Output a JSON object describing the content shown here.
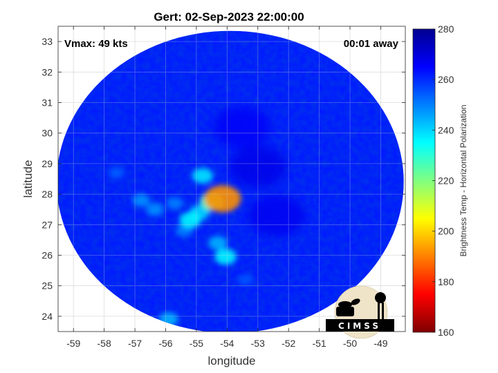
{
  "chart_data": {
    "type": "heatmap",
    "title": "Gert: 02-Sep-2023 22:00:00",
    "xlabel": "longitude",
    "ylabel": "latitude",
    "xlim": [
      -59.5,
      -48.2
    ],
    "ylim": [
      23.5,
      33.5
    ],
    "x_ticks": [
      -59,
      -58,
      -57,
      -56,
      -55,
      -54,
      -53,
      -52,
      -51,
      -50,
      -49
    ],
    "y_ticks": [
      24,
      25,
      26,
      27,
      28,
      29,
      30,
      31,
      32,
      33
    ],
    "grid": true,
    "annotations": {
      "vmax": "Vmax: 49 kts",
      "time_away": "00:01 away"
    },
    "colorbar": {
      "label": "Brightness Temp - Horizontal Polarization",
      "min": 160,
      "max": 280,
      "ticks": [
        160,
        180,
        200,
        220,
        240,
        260,
        280
      ],
      "colors": [
        "#7f0000",
        "#ff0000",
        "#ff8000",
        "#ffff00",
        "#80ff80",
        "#00ffff",
        "#0080ff",
        "#0000ff",
        "#00008f"
      ]
    },
    "swath": {
      "center": [
        -53.9,
        28.4
      ],
      "lon_radius": 5.65,
      "lat_radius": 4.95,
      "background_value": 262
    },
    "features": [
      {
        "lon": -54.15,
        "lat": 27.85,
        "value": 192
      },
      {
        "lon": -54.5,
        "lat": 27.75,
        "value": 228
      },
      {
        "lon": -54.9,
        "lat": 27.4,
        "value": 240
      },
      {
        "lon": -55.2,
        "lat": 27.15,
        "value": 236
      },
      {
        "lon": -54.8,
        "lat": 28.6,
        "value": 238
      },
      {
        "lon": -54.05,
        "lat": 25.95,
        "value": 236
      },
      {
        "lon": -54.3,
        "lat": 26.4,
        "value": 244
      },
      {
        "lon": -56.35,
        "lat": 27.5,
        "value": 248
      },
      {
        "lon": -55.4,
        "lat": 26.8,
        "value": 250
      },
      {
        "lon": -55.7,
        "lat": 27.7,
        "value": 250
      },
      {
        "lon": -56.8,
        "lat": 27.8,
        "value": 248
      },
      {
        "lon": -57.6,
        "lat": 28.7,
        "value": 254
      },
      {
        "lon": -55.9,
        "lat": 23.9,
        "value": 244
      },
      {
        "lon": -53.4,
        "lat": 25.2,
        "value": 255
      }
    ],
    "cold_features": [
      {
        "lon": -53.0,
        "lat": 28.9,
        "value": 268
      },
      {
        "lon": -52.4,
        "lat": 27.3,
        "value": 267
      },
      {
        "lon": -53.5,
        "lat": 30.2,
        "value": 266
      }
    ],
    "logo_text": "CIMSS"
  }
}
